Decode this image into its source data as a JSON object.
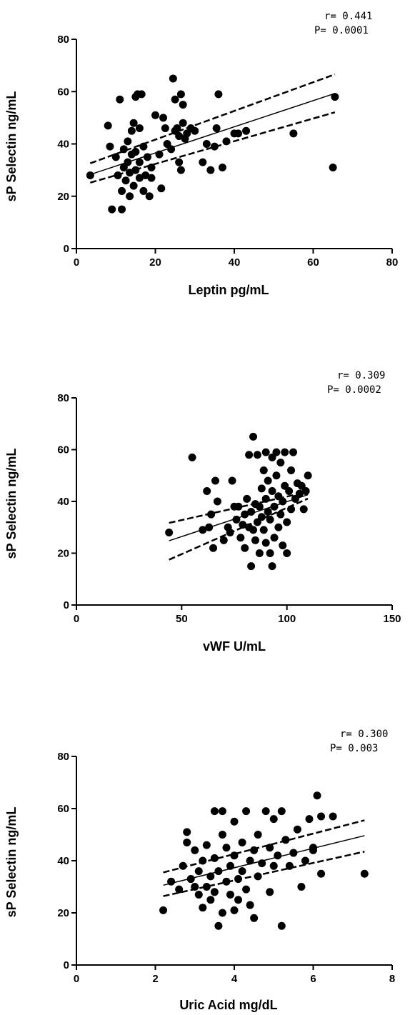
{
  "chart_data": [
    {
      "type": "scatter",
      "title": "",
      "xlabel": "Leptin pg/mL",
      "ylabel": "sP Selectin ng/mL",
      "xlim": [
        0,
        80
      ],
      "ylim": [
        0,
        80
      ],
      "x_ticks": [
        "0",
        "20",
        "40",
        "60",
        "80"
      ],
      "y_ticks": [
        "0",
        "20",
        "40",
        "60",
        "80"
      ],
      "stats": {
        "r": "r= 0.441",
        "p": "P= 0.0001"
      },
      "grid": false,
      "regression": {
        "x_range": [
          3.5,
          65.5
        ],
        "fit": [
          28.3,
          59.3
        ],
        "upper": [
          32.6,
          66.6
        ],
        "lower": [
          25.2,
          52.1
        ]
      },
      "points": [
        [
          3.5,
          28
        ],
        [
          8,
          47
        ],
        [
          8.5,
          39
        ],
        [
          9,
          15
        ],
        [
          10,
          35
        ],
        [
          10.5,
          28
        ],
        [
          11,
          57
        ],
        [
          11.5,
          15
        ],
        [
          11.5,
          22
        ],
        [
          12,
          31
        ],
        [
          12,
          38
        ],
        [
          12.5,
          26
        ],
        [
          13,
          33
        ],
        [
          13,
          41
        ],
        [
          13.5,
          29
        ],
        [
          13.5,
          20
        ],
        [
          14,
          36
        ],
        [
          14,
          45
        ],
        [
          14.5,
          24
        ],
        [
          14.5,
          48
        ],
        [
          15,
          30
        ],
        [
          15,
          37
        ],
        [
          15,
          58
        ],
        [
          15.5,
          59
        ],
        [
          16,
          27
        ],
        [
          16,
          33
        ],
        [
          16,
          46
        ],
        [
          16.5,
          59
        ],
        [
          17,
          22
        ],
        [
          17,
          39
        ],
        [
          17.5,
          28
        ],
        [
          18,
          35
        ],
        [
          18.5,
          20
        ],
        [
          19,
          27
        ],
        [
          19,
          31
        ],
        [
          20,
          51
        ],
        [
          21,
          36
        ],
        [
          21.5,
          23
        ],
        [
          22,
          50
        ],
        [
          22.5,
          46
        ],
        [
          23,
          40
        ],
        [
          24,
          38
        ],
        [
          24.5,
          65
        ],
        [
          25,
          45
        ],
        [
          25,
          57
        ],
        [
          25.5,
          46
        ],
        [
          26,
          33
        ],
        [
          26,
          43
        ],
        [
          26.5,
          30
        ],
        [
          26.5,
          59
        ],
        [
          27,
          48
        ],
        [
          27,
          55
        ],
        [
          27.5,
          42
        ],
        [
          28,
          44
        ],
        [
          29,
          46
        ],
        [
          30,
          45
        ],
        [
          32,
          33
        ],
        [
          33,
          40
        ],
        [
          34,
          30
        ],
        [
          35,
          39
        ],
        [
          35.5,
          46
        ],
        [
          36,
          59
        ],
        [
          37,
          31
        ],
        [
          38,
          41
        ],
        [
          40,
          44
        ],
        [
          41,
          44
        ],
        [
          43,
          45
        ],
        [
          55,
          44
        ],
        [
          65,
          31
        ],
        [
          65.5,
          58
        ]
      ]
    },
    {
      "type": "scatter",
      "title": "",
      "xlabel": "vWF U/mL",
      "ylabel": "sP Selectin ng/mL",
      "xlim": [
        0,
        150
      ],
      "ylim": [
        0,
        80
      ],
      "x_ticks": [
        "0",
        "50",
        "100",
        "150"
      ],
      "y_ticks": [
        "0",
        "20",
        "40",
        "60",
        "80"
      ],
      "stats": {
        "r": "r= 0.309",
        "p": "P= 0.0002"
      },
      "grid": false,
      "regression": {
        "x_range": [
          44,
          110
        ],
        "fit": [
          24.8,
          42.6
        ],
        "upper": [
          31.7,
          43.7
        ],
        "lower": [
          17.5,
          41.1
        ]
      },
      "points": [
        [
          44,
          28
        ],
        [
          55,
          57
        ],
        [
          60,
          29
        ],
        [
          62,
          44
        ],
        [
          63,
          30
        ],
        [
          64,
          35
        ],
        [
          65,
          22
        ],
        [
          66,
          48
        ],
        [
          67,
          40
        ],
        [
          70,
          25
        ],
        [
          72,
          30
        ],
        [
          73,
          28
        ],
        [
          74,
          48
        ],
        [
          75,
          38
        ],
        [
          76,
          33
        ],
        [
          77,
          38
        ],
        [
          78,
          26
        ],
        [
          79,
          31
        ],
        [
          80,
          35
        ],
        [
          80,
          22
        ],
        [
          81,
          41
        ],
        [
          82,
          58
        ],
        [
          82,
          30
        ],
        [
          83,
          36
        ],
        [
          83,
          15
        ],
        [
          84,
          65
        ],
        [
          84,
          29
        ],
        [
          85,
          39
        ],
        [
          85,
          25
        ],
        [
          86,
          32
        ],
        [
          86,
          58
        ],
        [
          87,
          38
        ],
        [
          87,
          20
        ],
        [
          88,
          34
        ],
        [
          88,
          45
        ],
        [
          89,
          52
        ],
        [
          89,
          29
        ],
        [
          90,
          59
        ],
        [
          90,
          41
        ],
        [
          90,
          24
        ],
        [
          91,
          36
        ],
        [
          91,
          48
        ],
        [
          92,
          20
        ],
        [
          92,
          33
        ],
        [
          93,
          15
        ],
        [
          93,
          44
        ],
        [
          93,
          57
        ],
        [
          94,
          26
        ],
        [
          94,
          38
        ],
        [
          95,
          50
        ],
        [
          95,
          59
        ],
        [
          96,
          30
        ],
        [
          96,
          42
        ],
        [
          97,
          35
        ],
        [
          97,
          55
        ],
        [
          98,
          40
        ],
        [
          98,
          23
        ],
        [
          99,
          46
        ],
        [
          99,
          59
        ],
        [
          100,
          20
        ],
        [
          100,
          32
        ],
        [
          101,
          44
        ],
        [
          102,
          37
        ],
        [
          102,
          52
        ],
        [
          103,
          59
        ],
        [
          104,
          41
        ],
        [
          105,
          47
        ],
        [
          106,
          43
        ],
        [
          107,
          46
        ],
        [
          108,
          37
        ],
        [
          109,
          44
        ],
        [
          110,
          50
        ]
      ]
    },
    {
      "type": "scatter",
      "title": "",
      "xlabel": "Uric Acid mg/dL",
      "ylabel": "sP Selectin ng/mL",
      "xlim": [
        0,
        8
      ],
      "ylim": [
        0,
        80
      ],
      "x_ticks": [
        "0",
        "2",
        "4",
        "6",
        "8"
      ],
      "y_ticks": [
        "0",
        "20",
        "40",
        "60",
        "80"
      ],
      "stats": {
        "r": "r= 0.300",
        "p": "P= 0.003"
      },
      "grid": false,
      "regression": {
        "x_range": [
          2.2,
          7.3
        ],
        "fit": [
          30.6,
          49.6
        ],
        "upper": [
          35.5,
          55.5
        ],
        "lower": [
          26.4,
          43.5
        ]
      },
      "points": [
        [
          2.2,
          21
        ],
        [
          2.4,
          32
        ],
        [
          2.6,
          29
        ],
        [
          2.7,
          38
        ],
        [
          2.8,
          51
        ],
        [
          2.8,
          47
        ],
        [
          2.9,
          33
        ],
        [
          3.0,
          44
        ],
        [
          3.0,
          30
        ],
        [
          3.1,
          27
        ],
        [
          3.1,
          36
        ],
        [
          3.2,
          22
        ],
        [
          3.2,
          40
        ],
        [
          3.3,
          46
        ],
        [
          3.3,
          30
        ],
        [
          3.4,
          25
        ],
        [
          3.4,
          34
        ],
        [
          3.5,
          41
        ],
        [
          3.5,
          28
        ],
        [
          3.5,
          59
        ],
        [
          3.6,
          15
        ],
        [
          3.6,
          36
        ],
        [
          3.7,
          50
        ],
        [
          3.7,
          59
        ],
        [
          3.7,
          20
        ],
        [
          3.8,
          32
        ],
        [
          3.8,
          45
        ],
        [
          3.9,
          27
        ],
        [
          3.9,
          38
        ],
        [
          4.0,
          21
        ],
        [
          4.0,
          42
        ],
        [
          4.0,
          55
        ],
        [
          4.1,
          33
        ],
        [
          4.1,
          25
        ],
        [
          4.2,
          47
        ],
        [
          4.2,
          36
        ],
        [
          4.3,
          29
        ],
        [
          4.3,
          59
        ],
        [
          4.4,
          40
        ],
        [
          4.4,
          23
        ],
        [
          4.5,
          44
        ],
        [
          4.5,
          18
        ],
        [
          4.6,
          34
        ],
        [
          4.6,
          50
        ],
        [
          4.7,
          39
        ],
        [
          4.8,
          59
        ],
        [
          4.9,
          45
        ],
        [
          4.9,
          28
        ],
        [
          5.0,
          38
        ],
        [
          5.0,
          56
        ],
        [
          5.1,
          42
        ],
        [
          5.2,
          15
        ],
        [
          5.2,
          59
        ],
        [
          5.3,
          48
        ],
        [
          5.4,
          38
        ],
        [
          5.5,
          43
        ],
        [
          5.6,
          52
        ],
        [
          5.7,
          30
        ],
        [
          5.8,
          40
        ],
        [
          5.9,
          56
        ],
        [
          6.0,
          45
        ],
        [
          6.0,
          44
        ],
        [
          6.1,
          65
        ],
        [
          6.2,
          57
        ],
        [
          6.2,
          35
        ],
        [
          6.5,
          57
        ],
        [
          7.3,
          35
        ]
      ]
    }
  ]
}
